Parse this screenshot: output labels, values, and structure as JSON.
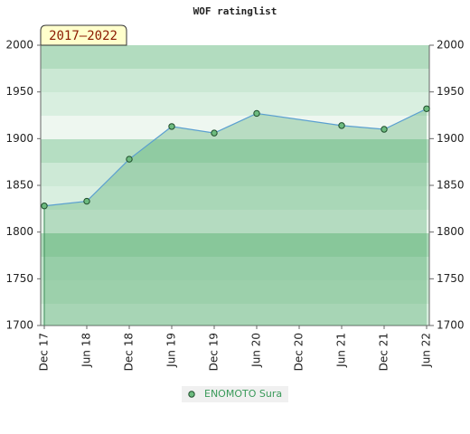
{
  "chart_data": {
    "type": "line",
    "title": "WOF ratinglist",
    "annotation": "2017–2022",
    "categories": [
      "Dec 17",
      "Jun 18",
      "Dec 18",
      "Jun 19",
      "Dec 19",
      "Jun 20",
      "Dec 20",
      "Jun 21",
      "Dec 21",
      "Jun 22"
    ],
    "series": [
      {
        "name": "ENOMOTO Sura",
        "color": "#3f8f5a",
        "x": [
          "Dec 17",
          "Jun 18",
          "Dec 18",
          "Jun 19",
          "Dec 19",
          "Jun 20",
          "Jun 21",
          "Dec 21",
          "Jun 22"
        ],
        "values": [
          1828,
          1833,
          1878,
          1913,
          1906,
          1927,
          1914,
          1910,
          1932
        ]
      }
    ],
    "ylim": [
      1700,
      2000
    ],
    "yticks": [
      1700,
      1750,
      1800,
      1850,
      1900,
      1950,
      2000
    ],
    "y2lim": [
      1700,
      2000
    ]
  }
}
